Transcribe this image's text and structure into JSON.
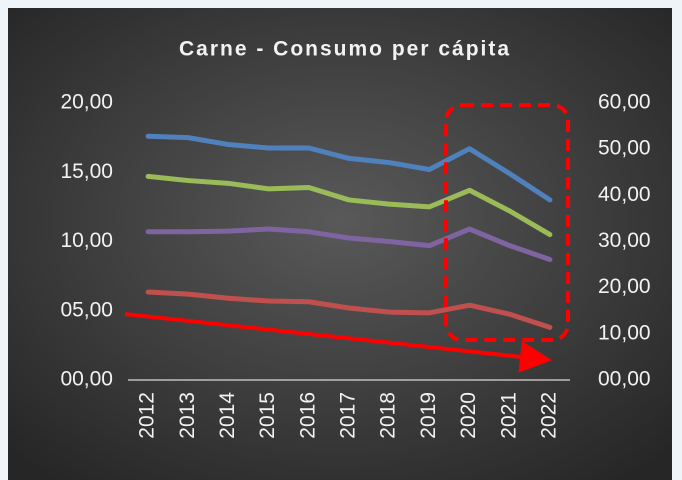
{
  "chart_data": {
    "type": "line",
    "title": "Carne - Consumo per cápita",
    "categories": [
      "2012",
      "2013",
      "2014",
      "2015",
      "2016",
      "2017",
      "2018",
      "2019",
      "2020",
      "2021",
      "2022"
    ],
    "series": [
      {
        "color": "#4f81bd",
        "values": [
          17.6,
          17.5,
          17.0,
          16.75,
          16.75,
          16.0,
          15.7,
          15.2,
          16.7,
          14.9,
          13.0
        ]
      },
      {
        "color": "#9bbb59",
        "values": [
          14.7,
          14.4,
          14.2,
          13.8,
          13.9,
          13.0,
          12.7,
          12.5,
          13.7,
          12.2,
          10.5
        ]
      },
      {
        "color": "#8064a2",
        "values": [
          10.7,
          10.7,
          10.75,
          10.9,
          10.7,
          10.25,
          10.0,
          9.7,
          10.9,
          9.7,
          8.7
        ]
      },
      {
        "color": "#c0504d",
        "values": [
          6.35,
          6.2,
          5.9,
          5.7,
          5.65,
          5.2,
          4.9,
          4.85,
          5.4,
          4.75,
          3.8
        ]
      }
    ],
    "ylim": [
      0,
      20
    ],
    "yticks": [
      {
        "value": 0,
        "label": "00,00"
      },
      {
        "value": 5,
        "label": "05,00"
      },
      {
        "value": 10,
        "label": "10,00"
      },
      {
        "value": 15,
        "label": "15,00"
      },
      {
        "value": 20,
        "label": "20,00"
      }
    ],
    "y2lim": [
      0,
      60
    ],
    "y2ticks": [
      {
        "value": 0,
        "label": "00,00"
      },
      {
        "value": 10,
        "label": "10,00"
      },
      {
        "value": 20,
        "label": "20,00"
      },
      {
        "value": 30,
        "label": "30,00"
      },
      {
        "value": 40,
        "label": "40,00"
      },
      {
        "value": 50,
        "label": "50,00"
      },
      {
        "value": 60,
        "label": "60,00"
      }
    ],
    "grid": false
  }
}
